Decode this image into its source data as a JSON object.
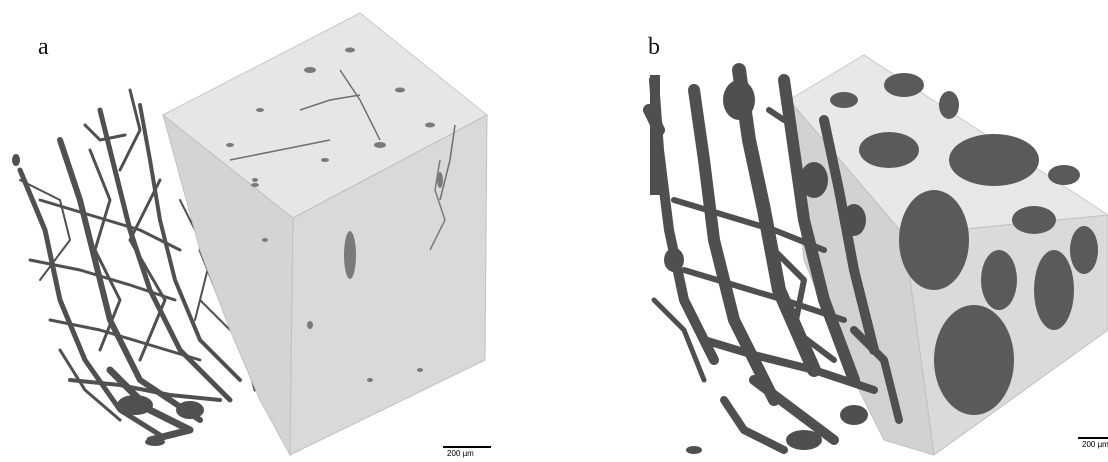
{
  "panels": [
    {
      "label": "a",
      "scale_label": "200 µm"
    },
    {
      "label": "b",
      "scale_label": "200 µm"
    }
  ],
  "colors": {
    "background": "#ffffff",
    "vessel": "#505050",
    "cube_front": "#d9d9d9",
    "cube_top": "#e6e6e6",
    "cube_side": "#cfcfcf",
    "text": "#111111"
  }
}
